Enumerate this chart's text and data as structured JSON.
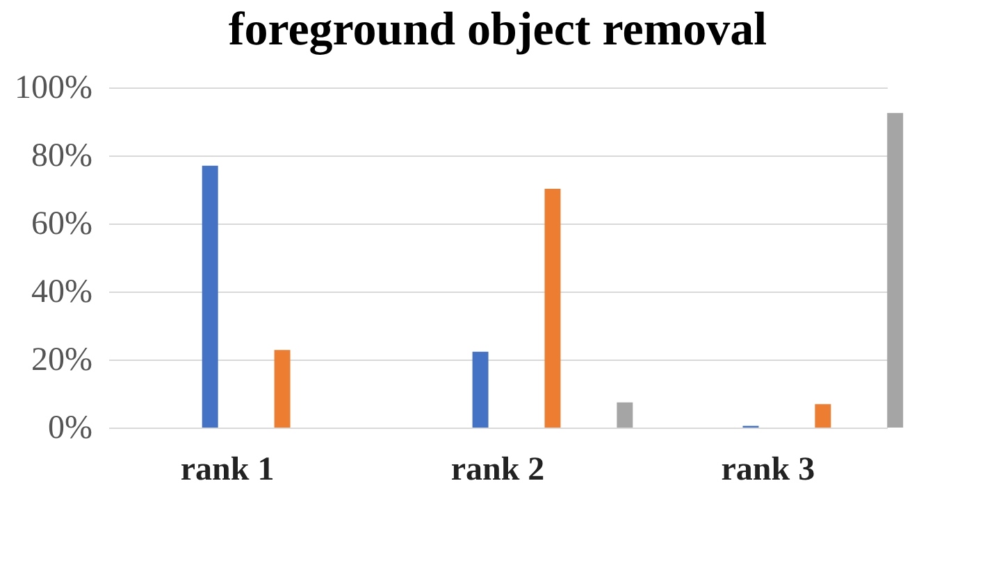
{
  "chart_data": {
    "type": "bar",
    "title": "foreground object removal",
    "categories": [
      "rank 1",
      "rank 2",
      "rank 3"
    ],
    "series": [
      {
        "color": "#4472c4",
        "values": [
          77,
          22.3,
          0.5
        ]
      },
      {
        "color": "#ed7d31",
        "values": [
          22.8,
          70.2,
          6.9
        ]
      },
      {
        "color": "#a5a5a5",
        "values": [
          0,
          7.4,
          92.5
        ]
      }
    ],
    "ylim": [
      0,
      100
    ],
    "yticks": [
      {
        "value": 0,
        "label": "0%"
      },
      {
        "value": 20,
        "label": "20%"
      },
      {
        "value": 40,
        "label": "40%"
      },
      {
        "value": 60,
        "label": "60%"
      },
      {
        "value": 80,
        "label": "80%"
      },
      {
        "value": 100,
        "label": "100%"
      }
    ],
    "grid": "y",
    "legend": false
  }
}
